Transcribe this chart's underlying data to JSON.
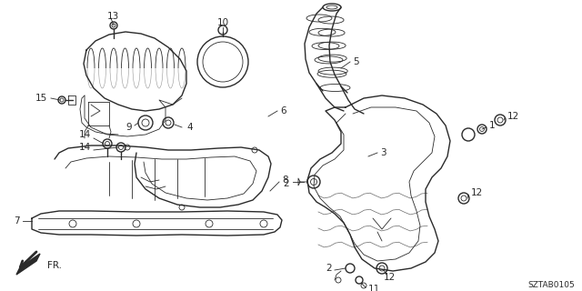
{
  "bg_color": "#ffffff",
  "line_color": "#2a2a2a",
  "part_number": "SZTAB0105",
  "figsize": [
    6.4,
    3.2
  ],
  "dpi": 100
}
